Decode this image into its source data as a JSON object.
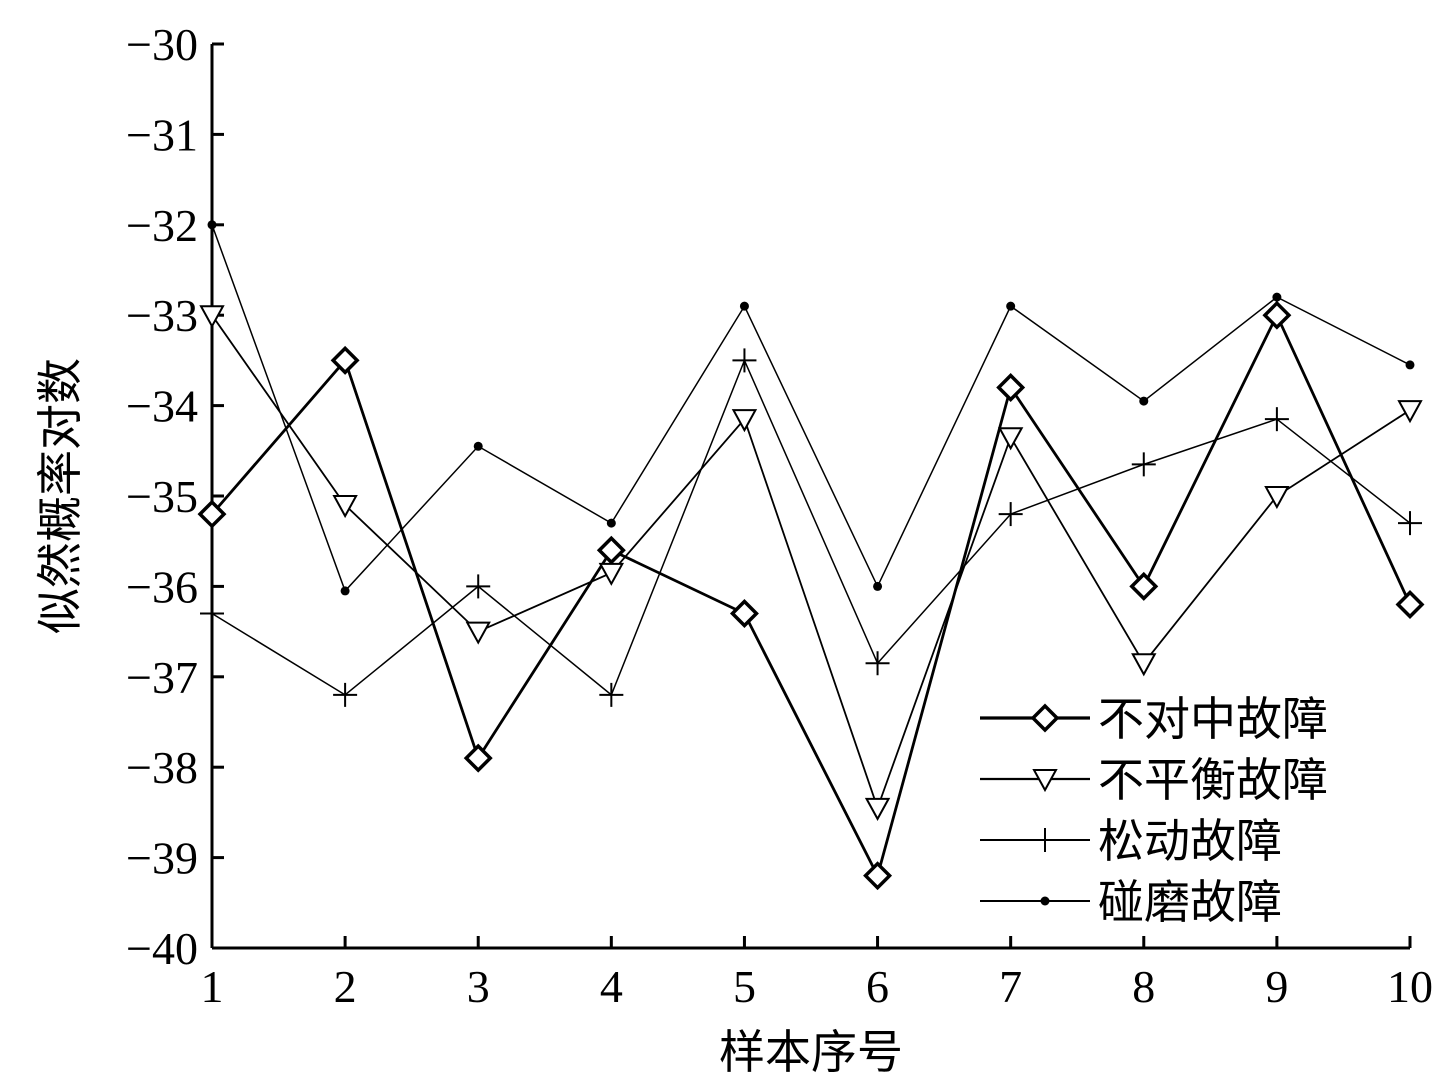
{
  "chart_data": {
    "type": "line",
    "xlabel": "样本序号",
    "ylabel": "似然概率对数",
    "x": [
      1,
      2,
      3,
      4,
      5,
      6,
      7,
      8,
      9,
      10
    ],
    "xlim": [
      1,
      10
    ],
    "ylim": [
      -40,
      -30
    ],
    "yticks": [
      -30,
      -31,
      -32,
      -33,
      -34,
      -35,
      -36,
      -37,
      -38,
      -39,
      -40
    ],
    "xticks": [
      1,
      2,
      3,
      4,
      5,
      6,
      7,
      8,
      9,
      10
    ],
    "grid": false,
    "legend_position": "bottom-right",
    "series": [
      {
        "name": "不对中故障",
        "marker": "diamond",
        "values": [
          -35.2,
          -33.5,
          -37.9,
          -35.6,
          -36.3,
          -39.2,
          -33.8,
          -36.0,
          -33.0,
          -36.2
        ]
      },
      {
        "name": "不平衡故障",
        "marker": "triangle-down",
        "values": [
          -33.0,
          -35.1,
          -36.5,
          -35.85,
          -34.15,
          -38.45,
          -34.35,
          -36.85,
          -35.0,
          -34.05
        ]
      },
      {
        "name": "松动故障",
        "marker": "plus",
        "values": [
          -36.3,
          -37.2,
          -36.0,
          -37.2,
          -33.5,
          -36.85,
          -35.2,
          -34.65,
          -34.15,
          -35.3
        ]
      },
      {
        "name": "碰磨故障",
        "marker": "dot",
        "values": [
          -32.0,
          -36.05,
          -34.45,
          -35.3,
          -32.9,
          -36.0,
          -32.9,
          -33.95,
          -32.8,
          -33.55
        ]
      }
    ]
  }
}
